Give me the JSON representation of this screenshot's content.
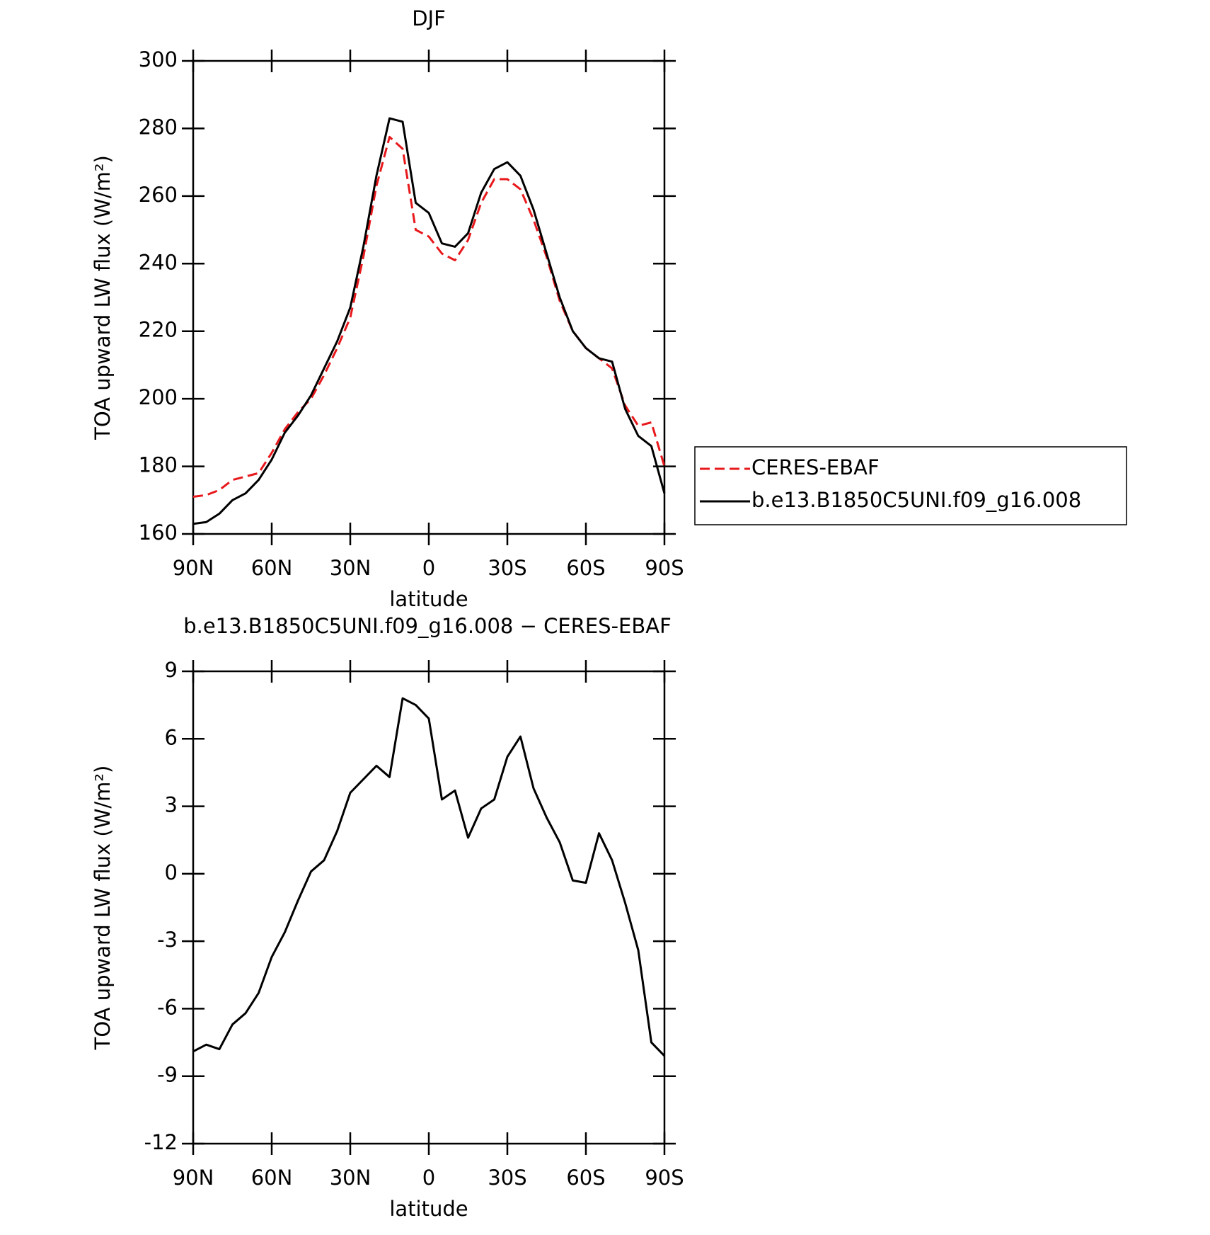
{
  "chart_data": [
    {
      "type": "line",
      "title": "DJF",
      "xlabel": "latitude",
      "ylabel": "TOA upward LW flux (W/m²)",
      "x": [
        90,
        85,
        80,
        75,
        70,
        65,
        60,
        55,
        50,
        45,
        40,
        35,
        30,
        25,
        20,
        15,
        10,
        5,
        0,
        -5,
        -10,
        -15,
        -20,
        -25,
        -30,
        -35,
        -40,
        -45,
        -50,
        -55,
        -60,
        -65,
        -70,
        -75,
        -80,
        -85,
        -90
      ],
      "series": [
        {
          "name": "CERES-EBAF",
          "color": "#e8191c",
          "style": "dashed",
          "values": [
            171,
            171.5,
            173,
            176,
            177,
            178,
            184,
            191,
            196,
            200,
            207,
            215,
            224,
            242,
            263,
            277.5,
            274,
            250,
            248,
            243,
            241,
            247,
            258,
            265,
            265,
            262,
            253,
            242,
            229,
            220,
            215,
            212,
            209,
            198,
            192,
            193,
            180
          ]
        },
        {
          "name": "b.e13.B1850C5UNI.f09_g16.008",
          "color": "#000000",
          "style": "solid",
          "values": [
            163,
            163.5,
            166,
            170,
            172,
            176,
            182,
            190,
            195,
            201,
            209,
            217,
            227,
            245,
            266,
            283,
            282,
            258,
            255,
            246,
            245,
            249,
            261,
            268,
            270,
            266,
            256,
            243,
            230,
            220,
            215,
            212,
            211,
            197,
            189,
            186,
            172
          ]
        }
      ],
      "xlim": [
        90,
        -90
      ],
      "xticks": [
        {
          "value": 90,
          "label": "90N"
        },
        {
          "value": 60,
          "label": "60N"
        },
        {
          "value": 30,
          "label": "30N"
        },
        0,
        {
          "value": -30,
          "label": "30S"
        },
        {
          "value": -60,
          "label": "60S"
        },
        {
          "value": -90,
          "label": "90S"
        }
      ],
      "ylim": [
        160,
        300
      ],
      "yticks": [
        160,
        180,
        200,
        220,
        240,
        260,
        280,
        300
      ],
      "legend": "right"
    },
    {
      "type": "line",
      "title": "b.e13.B1850C5UNI.f09_g16.008 − CERES-EBAF",
      "xlabel": "latitude",
      "ylabel": "TOA upward LW flux (W/m²)",
      "x": [
        90,
        85,
        80,
        75,
        70,
        65,
        60,
        55,
        50,
        45,
        40,
        35,
        30,
        25,
        20,
        15,
        10,
        5,
        0,
        -5,
        -10,
        -15,
        -20,
        -25,
        -30,
        -35,
        -40,
        -45,
        -50,
        -55,
        -60,
        -65,
        -70,
        -75,
        -80,
        -85,
        -90
      ],
      "series": [
        {
          "name": "b.e13.B1850C5UNI.f09_g16.008 − CERES-EBAF",
          "color": "#000000",
          "style": "solid",
          "values": [
            -7.9,
            -7.6,
            -7.8,
            -6.7,
            -6.2,
            -5.3,
            -3.7,
            -2.6,
            -1.2,
            0.1,
            0.6,
            1.9,
            3.6,
            4.2,
            4.8,
            4.3,
            7.8,
            7.5,
            6.9,
            3.3,
            3.7,
            1.6,
            2.9,
            3.3,
            5.2,
            6.1,
            3.8,
            2.5,
            1.4,
            -0.3,
            -0.4,
            1.8,
            0.6,
            -1.3,
            -3.4,
            -7.5,
            -8.1
          ]
        }
      ],
      "xlim": [
        90,
        -90
      ],
      "xticks": [
        {
          "value": 90,
          "label": "90N"
        },
        {
          "value": 60,
          "label": "60N"
        },
        {
          "value": 30,
          "label": "30N"
        },
        0,
        {
          "value": -30,
          "label": "30S"
        },
        {
          "value": -60,
          "label": "60S"
        },
        {
          "value": -90,
          "label": "90S"
        }
      ],
      "ylim": [
        -12,
        9
      ],
      "yticks": [
        -12,
        -9,
        -6,
        -3,
        0,
        3,
        6,
        9
      ]
    }
  ]
}
